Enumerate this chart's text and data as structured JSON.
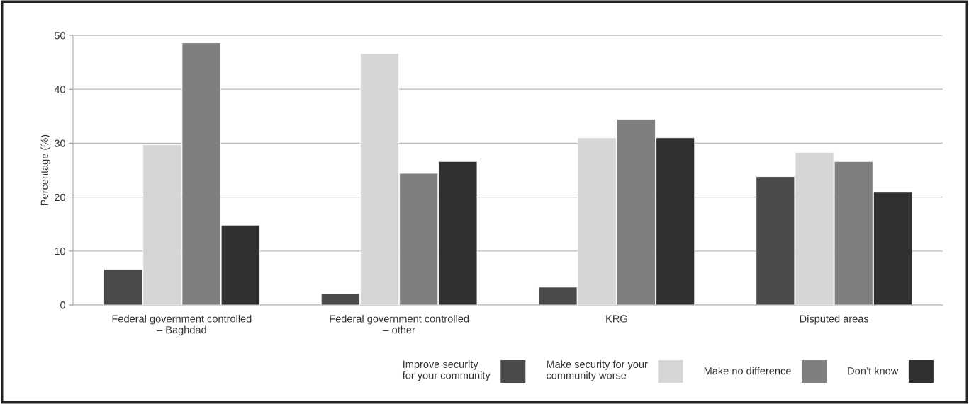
{
  "chart_data": {
    "type": "bar",
    "ylabel": "Percentage (%)",
    "categories": [
      "Federal government controlled\n– Baghdad",
      "Federal government controlled\n– other",
      "KRG",
      "Disputed areas"
    ],
    "series": [
      {
        "name": "Improve security\nfor your community",
        "color": "#4a4a4a",
        "values": [
          6.6,
          2.1,
          3.3,
          23.8
        ]
      },
      {
        "name": "Make security for your\ncommunity worse",
        "color": "#d6d6d6",
        "values": [
          29.7,
          46.6,
          31.0,
          28.3
        ]
      },
      {
        "name": "Make no difference",
        "color": "#7f7f7f",
        "values": [
          48.6,
          24.4,
          34.4,
          26.6
        ]
      },
      {
        "name": "Don’t know",
        "color": "#303030",
        "values": [
          14.8,
          26.6,
          31.0,
          20.9
        ]
      }
    ],
    "ylim": [
      0,
      50
    ],
    "yticks": [
      0,
      10,
      20,
      30,
      40,
      50
    ],
    "grid": "y",
    "legend": "bottom right"
  }
}
